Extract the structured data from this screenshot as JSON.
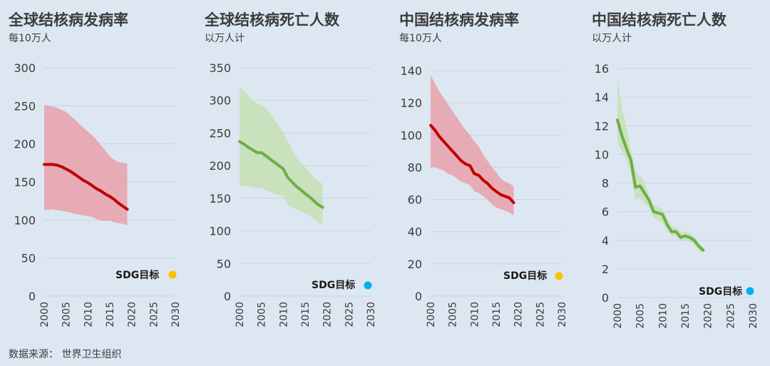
{
  "source": "数据来源：  世界卫生组织",
  "colors": {
    "red_line": "#c00000",
    "red_band": "#e8a0aa",
    "green_line": "#70ad47",
    "green_band": "#c5e0b4",
    "sdg_yellow": "#ffc000",
    "sdg_blue": "#00b0f0"
  },
  "chart_data": [
    {
      "type": "line",
      "title": "全球结核病发病率",
      "subtitle": "每10万人",
      "color": "red",
      "ylim": [
        0,
        300
      ],
      "yticks": [
        0,
        50,
        100,
        150,
        200,
        250,
        300
      ],
      "xlim": [
        2000,
        2030
      ],
      "xticks": [
        2000,
        2005,
        2010,
        2015,
        2020,
        2025,
        2030
      ],
      "x": [
        2000,
        2001,
        2002,
        2003,
        2004,
        2005,
        2006,
        2007,
        2008,
        2009,
        2010,
        2011,
        2012,
        2013,
        2014,
        2015,
        2016,
        2017,
        2018,
        2019
      ],
      "series": [
        {
          "name": "estimate",
          "values": [
            173,
            173,
            173,
            172,
            170,
            167,
            164,
            160,
            156,
            152,
            149,
            145,
            141,
            138,
            134,
            131,
            127,
            122,
            118,
            114
          ]
        },
        {
          "name": "upper",
          "values": [
            251,
            250,
            249,
            247,
            245,
            242,
            237,
            232,
            226,
            221,
            216,
            211,
            205,
            198,
            191,
            184,
            179,
            176,
            175,
            174
          ]
        },
        {
          "name": "lower",
          "values": [
            113,
            113,
            114,
            113,
            112,
            111,
            110,
            108,
            107,
            106,
            105,
            104,
            101,
            99,
            99,
            99,
            97,
            96,
            95,
            93
          ]
        }
      ],
      "sdg": {
        "label": "SDG目标",
        "value": 28,
        "year": 2030,
        "color": "yellow"
      }
    },
    {
      "type": "line",
      "title": "全球结核病死亡人数",
      "subtitle": "以万人计",
      "color": "green",
      "ylim": [
        0,
        350
      ],
      "yticks": [
        0,
        50,
        100,
        150,
        200,
        250,
        300,
        350
      ],
      "xlim": [
        2000,
        2030
      ],
      "xticks": [
        2000,
        2005,
        2010,
        2015,
        2020,
        2025,
        2030
      ],
      "x": [
        2000,
        2001,
        2002,
        2003,
        2004,
        2005,
        2006,
        2007,
        2008,
        2009,
        2010,
        2011,
        2012,
        2013,
        2014,
        2015,
        2016,
        2017,
        2018,
        2019
      ],
      "series": [
        {
          "name": "estimate",
          "values": [
            237,
            233,
            228,
            224,
            220,
            220,
            215,
            210,
            205,
            200,
            195,
            182,
            175,
            168,
            163,
            157,
            152,
            146,
            140,
            136
          ]
        },
        {
          "name": "upper",
          "values": [
            320,
            315,
            308,
            300,
            295,
            294,
            288,
            280,
            270,
            260,
            250,
            238,
            225,
            212,
            205,
            198,
            190,
            182,
            176,
            172
          ]
        },
        {
          "name": "lower",
          "values": [
            170,
            169,
            168,
            167,
            165,
            166,
            162,
            160,
            157,
            155,
            153,
            140,
            136,
            133,
            130,
            127,
            123,
            118,
            113,
            108
          ]
        }
      ],
      "sdg": {
        "label": "SDG目标",
        "value": 14,
        "year": 2030,
        "color": "blue"
      }
    },
    {
      "type": "line",
      "title": "中国结核病发病率",
      "subtitle": "每10万人",
      "color": "red",
      "ylim": [
        0,
        140
      ],
      "yticks": [
        0,
        20,
        40,
        60,
        80,
        100,
        120,
        140
      ],
      "xlim": [
        2000,
        2030
      ],
      "xticks": [
        2000,
        2005,
        2010,
        2015,
        2020,
        2025,
        2030
      ],
      "x": [
        2000,
        2001,
        2002,
        2003,
        2004,
        2005,
        2006,
        2007,
        2008,
        2009,
        2010,
        2011,
        2012,
        2013,
        2014,
        2015,
        2016,
        2017,
        2018,
        2019
      ],
      "series": [
        {
          "name": "estimate",
          "values": [
            106,
            103,
            99,
            96,
            93,
            90,
            87,
            84,
            82,
            81,
            76,
            75,
            72,
            70,
            67,
            65,
            63,
            62,
            61,
            58
          ]
        },
        {
          "name": "upper",
          "values": [
            137,
            132,
            127,
            123,
            119,
            115,
            111,
            107,
            103,
            100,
            96,
            93,
            88,
            84,
            80,
            77,
            73,
            71,
            70,
            68
          ]
        },
        {
          "name": "lower",
          "values": [
            80,
            80,
            79,
            78,
            76,
            75,
            73,
            71,
            70,
            69,
            65,
            64,
            62,
            60,
            57,
            55,
            54,
            53,
            52,
            50
          ]
        }
      ],
      "sdg": {
        "label": "SDG目标",
        "value": 13,
        "year": 2030,
        "color": "yellow"
      }
    },
    {
      "type": "line",
      "title": "中国结核病死亡人数",
      "subtitle": "以万人计",
      "color": "green",
      "ylim": [
        0,
        16
      ],
      "yticks": [
        0,
        2,
        4,
        6,
        8,
        10,
        12,
        14,
        16
      ],
      "xlim": [
        2000,
        2030
      ],
      "xticks": [
        2000,
        2005,
        2010,
        2015,
        2020,
        2025,
        2030
      ],
      "x": [
        2000,
        2001,
        2002,
        2003,
        2004,
        2005,
        2006,
        2007,
        2008,
        2009,
        2010,
        2011,
        2012,
        2013,
        2014,
        2015,
        2016,
        2017,
        2018,
        2019
      ],
      "series": [
        {
          "name": "estimate",
          "values": [
            12.4,
            11.3,
            10.4,
            9.6,
            7.7,
            7.8,
            7.3,
            6.8,
            6.0,
            5.9,
            5.8,
            5.1,
            4.6,
            4.6,
            4.2,
            4.3,
            4.2,
            4.0,
            3.6,
            3.3
          ]
        },
        {
          "name": "upper",
          "values": [
            15.3,
            13.2,
            12.0,
            10.2,
            8.8,
            8.5,
            8.0,
            7.2,
            6.5,
            6.3,
            6.2,
            5.5,
            5.0,
            4.9,
            4.6,
            4.6,
            4.5,
            4.3,
            3.8,
            3.5
          ]
        },
        {
          "name": "lower",
          "values": [
            10.8,
            10.2,
            9.6,
            8.7,
            6.8,
            7.0,
            6.6,
            6.3,
            5.6,
            5.4,
            5.2,
            4.7,
            4.3,
            4.3,
            3.9,
            4.0,
            3.9,
            3.7,
            3.3,
            3.1
          ]
        }
      ],
      "sdg": {
        "label": "SDG目标",
        "value": 0.4,
        "year": 2030,
        "color": "blue"
      }
    }
  ]
}
